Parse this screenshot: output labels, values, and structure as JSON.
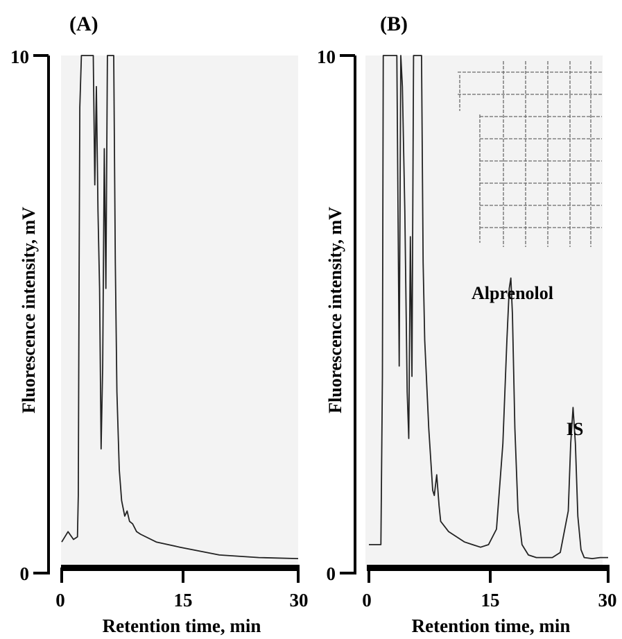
{
  "chart_data": [
    {
      "type": "line",
      "panel_label": "(A)",
      "xlabel": "Retention time, min",
      "ylabel": "Fluorescence intensity, mV",
      "xlim": [
        0,
        30
      ],
      "ylim": [
        0,
        10
      ],
      "x_ticks": [
        "0",
        "15",
        "30"
      ],
      "y_ticks": [
        "10",
        "0"
      ],
      "grid": false,
      "annotations": [],
      "series": [
        {
          "x": [
            0,
            0.8,
            1.5,
            2.0,
            2.1,
            2.2,
            2.3,
            2.5,
            2.7,
            3.0,
            3.5,
            4.0,
            4.2,
            4.4,
            4.6,
            4.8,
            5.0,
            5.2,
            5.4,
            5.6,
            5.8,
            6.0,
            6.3,
            6.6,
            6.8,
            7.0,
            7.3,
            7.6,
            8.0,
            8.3,
            8.6,
            9.0,
            9.5,
            10,
            12,
            15,
            20,
            25,
            30
          ],
          "y": [
            0.6,
            0.8,
            0.65,
            0.7,
            1.5,
            5.5,
            9.0,
            10,
            10,
            10,
            10,
            10,
            7.5,
            9.4,
            7.0,
            5.5,
            2.4,
            4.0,
            8.2,
            5.5,
            10,
            10,
            10,
            10,
            6.0,
            3.5,
            2.0,
            1.4,
            1.1,
            1.2,
            1.0,
            0.95,
            0.8,
            0.75,
            0.6,
            0.5,
            0.35,
            0.3,
            0.28
          ]
        }
      ]
    },
    {
      "type": "line",
      "panel_label": "(B)",
      "xlabel": "Retention time, min",
      "ylabel": "Fluorescence intensity, mV",
      "xlim": [
        0,
        30
      ],
      "ylim": [
        0,
        10
      ],
      "x_ticks": [
        "0",
        "15",
        "30"
      ],
      "y_ticks": [
        "10",
        "0"
      ],
      "grid": false,
      "annotations": [
        {
          "text": "Alprenolol",
          "x": 17.8,
          "y": 5.9
        },
        {
          "text": "IS",
          "x": 25.6,
          "y": 3.2
        }
      ],
      "series": [
        {
          "x": [
            0,
            1.5,
            1.7,
            1.8,
            2.0,
            2.5,
            3.0,
            3.5,
            3.8,
            4.0,
            4.2,
            4.5,
            4.8,
            5.0,
            5.2,
            5.4,
            5.6,
            5.8,
            6.0,
            6.3,
            6.6,
            6.8,
            7.0,
            7.5,
            8.0,
            8.2,
            8.5,
            8.8,
            9.0,
            10,
            11,
            12,
            13,
            14,
            15,
            16,
            16.8,
            17.3,
            17.6,
            17.8,
            18.0,
            18.3,
            18.7,
            19.2,
            20,
            21,
            22,
            23,
            24,
            25,
            25.3,
            25.6,
            25.9,
            26.2,
            26.6,
            27,
            28,
            29,
            30
          ],
          "y": [
            0.55,
            0.55,
            3.8,
            10,
            10,
            10,
            10,
            10,
            4.0,
            10,
            9.4,
            7.0,
            3.5,
            2.6,
            6.5,
            3.8,
            10,
            10,
            10,
            10,
            10,
            6.0,
            4.5,
            2.8,
            1.6,
            1.5,
            1.9,
            1.3,
            1.0,
            0.8,
            0.7,
            0.6,
            0.55,
            0.5,
            0.55,
            0.85,
            2.5,
            4.5,
            5.5,
            5.7,
            5.0,
            2.8,
            1.2,
            0.55,
            0.35,
            0.3,
            0.3,
            0.3,
            0.4,
            1.2,
            2.5,
            3.2,
            2.5,
            1.1,
            0.45,
            0.3,
            0.28,
            0.3,
            0.3
          ]
        }
      ]
    }
  ]
}
